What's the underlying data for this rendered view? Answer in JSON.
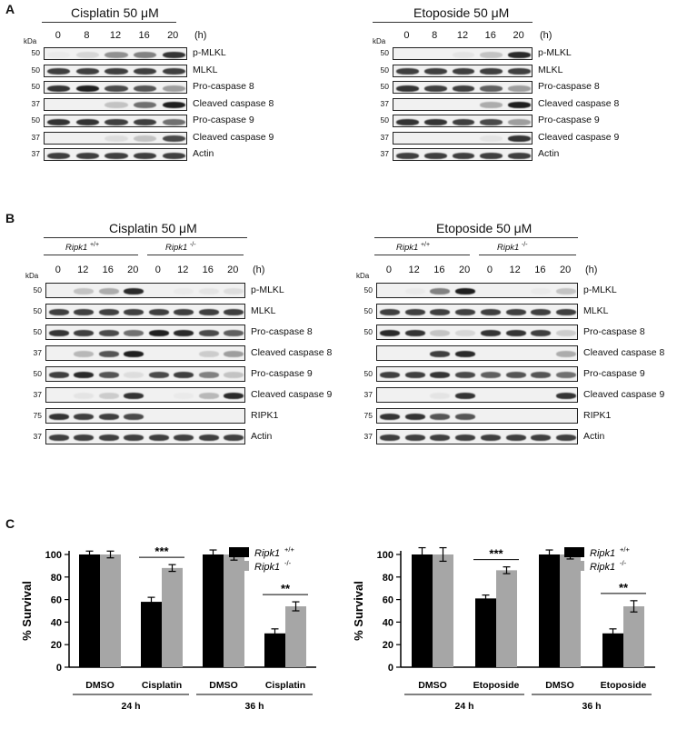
{
  "panel_a": {
    "letter": "A",
    "left": {
      "title": "Cisplatin 50 μM",
      "lanes": [
        "0",
        "8",
        "12",
        "16",
        "20"
      ],
      "unit": "(h)",
      "rows": [
        {
          "mw": "50",
          "label": "p-MLKL",
          "bands": [
            0.05,
            0.2,
            0.5,
            0.55,
            0.85
          ]
        },
        {
          "mw": "50",
          "label": "MLKL",
          "bands": [
            0.8,
            0.8,
            0.8,
            0.8,
            0.8
          ]
        },
        {
          "mw": "50",
          "label": "Pro-caspase 8",
          "bands": [
            0.85,
            0.95,
            0.75,
            0.7,
            0.45
          ]
        },
        {
          "mw": "37",
          "label": "Cleaved caspase 8",
          "bands": [
            0.0,
            0.0,
            0.3,
            0.6,
            0.95
          ]
        },
        {
          "mw": "50",
          "label": "Pro-caspase 9",
          "bands": [
            0.85,
            0.85,
            0.8,
            0.8,
            0.6
          ]
        },
        {
          "mw": "37",
          "label": "Cleaved caspase 9",
          "bands": [
            0.0,
            0.0,
            0.15,
            0.3,
            0.75
          ]
        },
        {
          "mw": "37",
          "label": "Actin",
          "bands": [
            0.8,
            0.8,
            0.8,
            0.8,
            0.8
          ]
        }
      ]
    },
    "right": {
      "title": "Etoposide 50 μM",
      "lanes": [
        "0",
        "8",
        "12",
        "16",
        "20"
      ],
      "unit": "(h)",
      "rows": [
        {
          "mw": "50",
          "label": "p-MLKL",
          "bands": [
            0.0,
            0.0,
            0.1,
            0.3,
            0.9
          ]
        },
        {
          "mw": "50",
          "label": "MLKL",
          "bands": [
            0.8,
            0.8,
            0.8,
            0.8,
            0.8
          ]
        },
        {
          "mw": "50",
          "label": "Pro-caspase 8",
          "bands": [
            0.85,
            0.8,
            0.8,
            0.65,
            0.45
          ]
        },
        {
          "mw": "37",
          "label": "Cleaved caspase 8",
          "bands": [
            0.0,
            0.0,
            0.0,
            0.4,
            0.95
          ]
        },
        {
          "mw": "50",
          "label": "Pro-caspase 9",
          "bands": [
            0.85,
            0.85,
            0.8,
            0.75,
            0.45
          ]
        },
        {
          "mw": "37",
          "label": "Cleaved caspase 9",
          "bands": [
            0.0,
            0.0,
            0.0,
            0.1,
            0.85
          ]
        },
        {
          "mw": "37",
          "label": "Actin",
          "bands": [
            0.8,
            0.8,
            0.8,
            0.8,
            0.8
          ]
        }
      ]
    }
  },
  "panel_b": {
    "letter": "B",
    "left": {
      "title": "Cisplatin 50 μM",
      "geno_wt": "Ripk1",
      "geno_wt_sup": "+/+",
      "geno_ko": "Ripk1",
      "geno_ko_sup": "-/-",
      "lanes": [
        "0",
        "12",
        "16",
        "20",
        "0",
        "12",
        "16",
        "20"
      ],
      "unit": "(h)",
      "rows": [
        {
          "mw": "50",
          "label": "p-MLKL",
          "bands": [
            0.0,
            0.3,
            0.4,
            0.9,
            0.0,
            0.05,
            0.1,
            0.15
          ]
        },
        {
          "mw": "50",
          "label": "MLKL",
          "bands": [
            0.8,
            0.8,
            0.8,
            0.8,
            0.8,
            0.8,
            0.8,
            0.8
          ]
        },
        {
          "mw": "50",
          "label": "Pro-caspase 8",
          "bands": [
            0.85,
            0.8,
            0.75,
            0.6,
            0.95,
            0.9,
            0.75,
            0.65
          ]
        },
        {
          "mw": "37",
          "label": "Cleaved caspase 8",
          "bands": [
            0.0,
            0.35,
            0.7,
            0.95,
            0.0,
            0.0,
            0.25,
            0.45
          ]
        },
        {
          "mw": "50",
          "label": "Pro-caspase 9",
          "bands": [
            0.8,
            0.9,
            0.7,
            0.15,
            0.75,
            0.8,
            0.55,
            0.3
          ]
        },
        {
          "mw": "37",
          "label": "Cleaved caspase 9",
          "bands": [
            0.0,
            0.1,
            0.25,
            0.85,
            0.0,
            0.05,
            0.35,
            0.9
          ]
        },
        {
          "mw": "75",
          "label": "RIPK1",
          "bands": [
            0.85,
            0.8,
            0.8,
            0.75,
            0.0,
            0.0,
            0.0,
            0.0
          ]
        },
        {
          "mw": "37",
          "label": "Actin",
          "bands": [
            0.8,
            0.8,
            0.8,
            0.8,
            0.8,
            0.8,
            0.8,
            0.8
          ]
        }
      ]
    },
    "right": {
      "title": "Etoposide 50 μM",
      "geno_wt": "Ripk1",
      "geno_wt_sup": "+/+",
      "geno_ko": "Ripk1",
      "geno_ko_sup": "-/-",
      "lanes": [
        "0",
        "12",
        "16",
        "20",
        "0",
        "12",
        "16",
        "20"
      ],
      "unit": "(h)",
      "rows": [
        {
          "mw": "50",
          "label": "p-MLKL",
          "bands": [
            0.0,
            0.05,
            0.55,
            0.95,
            0.0,
            0.0,
            0.05,
            0.3
          ]
        },
        {
          "mw": "50",
          "label": "MLKL",
          "bands": [
            0.8,
            0.8,
            0.8,
            0.8,
            0.8,
            0.8,
            0.8,
            0.8
          ]
        },
        {
          "mw": "50",
          "label": "Pro-caspase 8",
          "bands": [
            0.9,
            0.85,
            0.3,
            0.2,
            0.85,
            0.85,
            0.8,
            0.25
          ]
        },
        {
          "mw": "",
          "label": "Cleaved caspase 8",
          "bands": [
            0.0,
            0.0,
            0.8,
            0.9,
            0.0,
            0.0,
            0.0,
            0.4
          ]
        },
        {
          "mw": "50",
          "label": "Pro-caspase 9",
          "bands": [
            0.8,
            0.8,
            0.85,
            0.75,
            0.65,
            0.7,
            0.7,
            0.6
          ]
        },
        {
          "mw": "37",
          "label": "Cleaved caspase 9",
          "bands": [
            0.0,
            0.0,
            0.1,
            0.85,
            0.0,
            0.0,
            0.0,
            0.85
          ]
        },
        {
          "mw": "75",
          "label": "RIPK1",
          "bands": [
            0.85,
            0.85,
            0.7,
            0.7,
            0.0,
            0.0,
            0.0,
            0.0
          ]
        },
        {
          "mw": "37",
          "label": "Actin",
          "bands": [
            0.8,
            0.8,
            0.8,
            0.8,
            0.8,
            0.8,
            0.8,
            0.8
          ]
        }
      ]
    }
  },
  "panel_c": {
    "letter": "C"
  },
  "kda_label": "kDa",
  "chart_data": [
    {
      "type": "bar",
      "ylabel": "% Survival",
      "ylim": [
        0,
        100
      ],
      "yticks": [
        0,
        20,
        40,
        60,
        80,
        100
      ],
      "categories": [
        "DMSO",
        "Cisplatin",
        "DMSO",
        "Cisplatin"
      ],
      "groups": [
        "24 h",
        "36 h"
      ],
      "series": [
        {
          "name": "Ripk1 +/+",
          "label": "Ripk1",
          "sup": "+/+",
          "color": "#000000",
          "values": [
            100,
            58,
            100,
            30
          ],
          "errors": [
            3,
            4,
            4,
            4
          ]
        },
        {
          "name": "Ripk1 -/-",
          "label": "Ripk1",
          "sup": "-/-",
          "color": "#a6a6a6",
          "values": [
            100,
            88,
            100,
            54
          ],
          "errors": [
            3,
            3,
            5,
            4
          ]
        }
      ],
      "significance": [
        {
          "category_index": 1,
          "label": "***"
        },
        {
          "category_index": 3,
          "label": "**"
        }
      ]
    },
    {
      "type": "bar",
      "ylabel": "% Survival",
      "ylim": [
        0,
        100
      ],
      "yticks": [
        0,
        20,
        40,
        60,
        80,
        100
      ],
      "categories": [
        "DMSO",
        "Etoposide",
        "DMSO",
        "Etoposide"
      ],
      "groups": [
        "24 h",
        "36 h"
      ],
      "series": [
        {
          "name": "Ripk1 +/+",
          "label": "Ripk1",
          "sup": "+/+",
          "color": "#000000",
          "values": [
            100,
            61,
            100,
            30
          ],
          "errors": [
            6,
            3,
            4,
            4
          ]
        },
        {
          "name": "Ripk1 -/-",
          "label": "Ripk1",
          "sup": "-/-",
          "color": "#a6a6a6",
          "values": [
            100,
            86,
            100,
            54
          ],
          "errors": [
            6,
            3,
            4,
            5
          ]
        }
      ],
      "significance": [
        {
          "category_index": 1,
          "label": "***"
        },
        {
          "category_index": 3,
          "label": "**"
        }
      ]
    }
  ]
}
